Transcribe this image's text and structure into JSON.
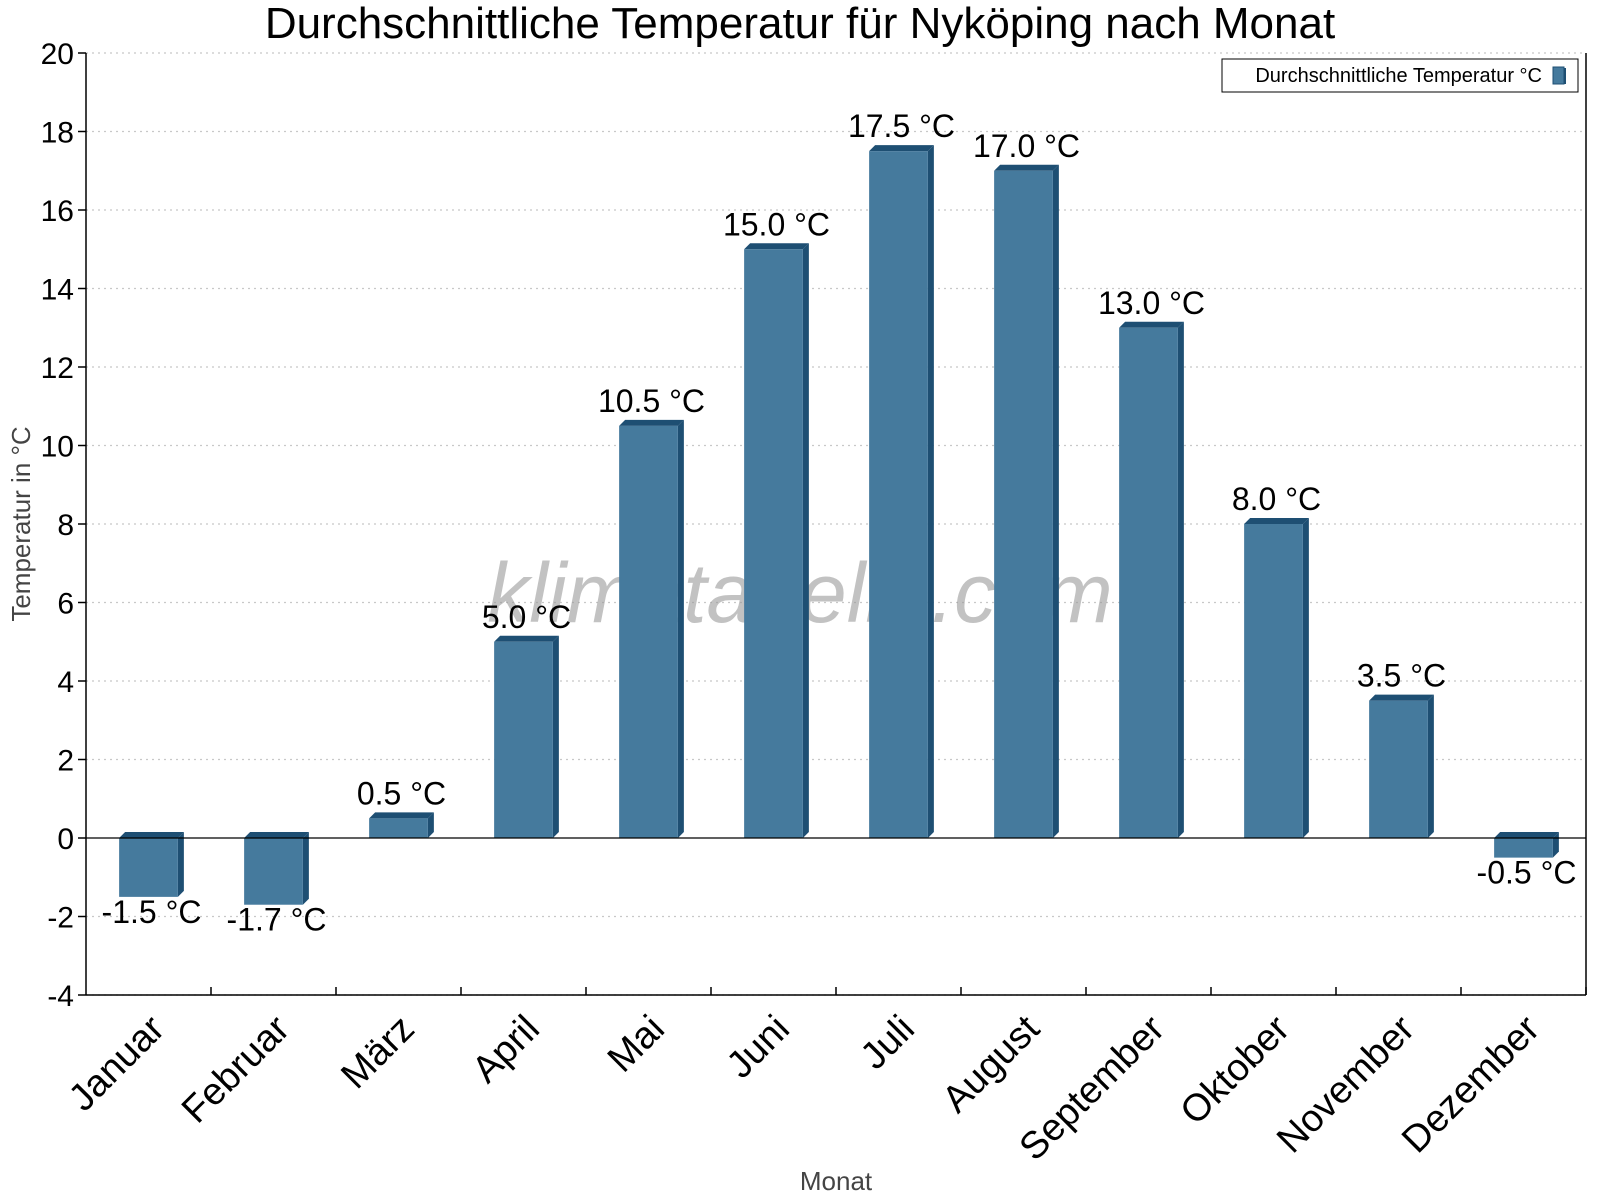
{
  "chart_data": {
    "type": "bar",
    "title": "Durchschnittliche Temperatur für Nyköping nach Monat",
    "xlabel": "Monat",
    "ylabel": "Temperatur in °C",
    "ylim": [
      -4,
      20
    ],
    "yticks": [
      -4,
      -2,
      0,
      2,
      4,
      6,
      8,
      10,
      12,
      14,
      16,
      18,
      20
    ],
    "grid": true,
    "legend_position": "top-right",
    "unit": "°C",
    "categories": [
      "Januar",
      "Februar",
      "März",
      "April",
      "Mai",
      "Juni",
      "Juli",
      "August",
      "September",
      "Oktober",
      "November",
      "Dezember"
    ],
    "series": [
      {
        "name": "Durchschnittliche Temperatur °C",
        "values": [
          -1.5,
          -1.7,
          0.5,
          5.0,
          10.5,
          15.0,
          17.5,
          17.0,
          13.0,
          8.0,
          3.5,
          -0.5
        ],
        "labels": [
          "-1.5 °C",
          "-1.7 °C",
          "0.5 °C",
          "5.0 °C",
          "10.5 °C",
          "15.0 °C",
          "17.5 °C",
          "17.0 °C",
          "13.0 °C",
          "8.0 °C",
          "3.5 °C",
          "-0.5 °C"
        ],
        "color": "#457a9d",
        "side_color": "#1e4f73"
      }
    ],
    "watermark": "klimatabelle.com"
  }
}
